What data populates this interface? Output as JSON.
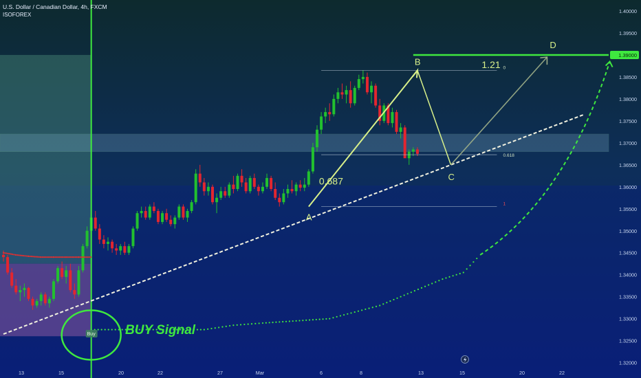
{
  "header": {
    "symbol_line": "U.S. Dollar / Canadian Dollar, 4h, FXCM",
    "author": "ISOFOREX"
  },
  "colors": {
    "bull": "#22c02f",
    "bear": "#e3262f",
    "signal": "#3fe83f",
    "harmonic": "#d8f08a",
    "background_top": "#0d2a2e",
    "background_bottom": "#0a1f73"
  },
  "icons": {
    "replay": "lightning-icon"
  },
  "chart_data": {
    "type": "candlestick",
    "title": "U.S. Dollar / Canadian Dollar, 4h, FXCM",
    "ylim": [
      1.3165,
      1.4025
    ],
    "y_ticks": [
      "1.40000",
      "1.39500",
      "1.38500",
      "1.38000",
      "1.37500",
      "1.37000",
      "1.36500",
      "1.36000",
      "1.35500",
      "1.35000",
      "1.34500",
      "1.34000",
      "1.33500",
      "1.33000",
      "1.32500",
      "1.32000"
    ],
    "x_ticks": [
      "13",
      "15",
      "20",
      "22",
      "27",
      "Mar",
      "6",
      "8",
      "13",
      "15",
      "20",
      "22"
    ],
    "last_price": "1.39000",
    "grid": false,
    "candles_ohlc": [
      [
        1.3445,
        1.3455,
        1.343,
        1.344
      ],
      [
        1.344,
        1.3445,
        1.34,
        1.3405
      ],
      [
        1.3405,
        1.3415,
        1.337,
        1.3375
      ],
      [
        1.3375,
        1.339,
        1.3355,
        1.336
      ],
      [
        1.336,
        1.3375,
        1.334,
        1.3365
      ],
      [
        1.3365,
        1.338,
        1.335,
        1.337
      ],
      [
        1.337,
        1.3372,
        1.334,
        1.3345
      ],
      [
        1.3345,
        1.335,
        1.332,
        1.333
      ],
      [
        1.333,
        1.3345,
        1.3325,
        1.334
      ],
      [
        1.334,
        1.336,
        1.333,
        1.3355
      ],
      [
        1.3355,
        1.336,
        1.333,
        1.3335
      ],
      [
        1.3335,
        1.335,
        1.3325,
        1.3345
      ],
      [
        1.3345,
        1.339,
        1.334,
        1.3385
      ],
      [
        1.3385,
        1.342,
        1.338,
        1.3415
      ],
      [
        1.3415,
        1.343,
        1.339,
        1.3395
      ],
      [
        1.3395,
        1.342,
        1.338,
        1.341
      ],
      [
        1.341,
        1.3425,
        1.336,
        1.3365
      ],
      [
        1.3365,
        1.338,
        1.3345,
        1.3355
      ],
      [
        1.3355,
        1.342,
        1.335,
        1.341
      ],
      [
        1.341,
        1.347,
        1.3405,
        1.3465
      ],
      [
        1.3465,
        1.351,
        1.346,
        1.35
      ],
      [
        1.35,
        1.355,
        1.3495,
        1.353
      ],
      [
        1.353,
        1.3545,
        1.35,
        1.3505
      ],
      [
        1.3505,
        1.3515,
        1.347,
        1.348
      ],
      [
        1.348,
        1.349,
        1.346,
        1.347
      ],
      [
        1.347,
        1.3485,
        1.3455,
        1.3475
      ],
      [
        1.3475,
        1.348,
        1.345,
        1.346
      ],
      [
        1.346,
        1.347,
        1.3445,
        1.3455
      ],
      [
        1.3455,
        1.347,
        1.3445,
        1.3465
      ],
      [
        1.3465,
        1.3475,
        1.3445,
        1.345
      ],
      [
        1.345,
        1.347,
        1.3445,
        1.3465
      ],
      [
        1.3465,
        1.351,
        1.346,
        1.3505
      ],
      [
        1.3505,
        1.3545,
        1.35,
        1.354
      ],
      [
        1.354,
        1.3555,
        1.353,
        1.3545
      ],
      [
        1.3545,
        1.3555,
        1.3525,
        1.353
      ],
      [
        1.353,
        1.356,
        1.3525,
        1.3555
      ],
      [
        1.3555,
        1.3565,
        1.354,
        1.3545
      ],
      [
        1.3545,
        1.355,
        1.3515,
        1.352
      ],
      [
        1.352,
        1.3545,
        1.3515,
        1.354
      ],
      [
        1.354,
        1.355,
        1.352,
        1.3525
      ],
      [
        1.3525,
        1.3535,
        1.351,
        1.3515
      ],
      [
        1.3515,
        1.3535,
        1.3505,
        1.353
      ],
      [
        1.353,
        1.356,
        1.3525,
        1.3555
      ],
      [
        1.3555,
        1.356,
        1.3525,
        1.353
      ],
      [
        1.353,
        1.355,
        1.352,
        1.3545
      ],
      [
        1.3545,
        1.357,
        1.354,
        1.3565
      ],
      [
        1.3565,
        1.364,
        1.356,
        1.363
      ],
      [
        1.363,
        1.365,
        1.36,
        1.361
      ],
      [
        1.361,
        1.362,
        1.358,
        1.359
      ],
      [
        1.359,
        1.361,
        1.358,
        1.36
      ],
      [
        1.36,
        1.3605,
        1.356,
        1.3565
      ],
      [
        1.3565,
        1.3585,
        1.354,
        1.3575
      ],
      [
        1.3575,
        1.36,
        1.357,
        1.359
      ],
      [
        1.359,
        1.36,
        1.3575,
        1.358
      ],
      [
        1.358,
        1.361,
        1.3575,
        1.3605
      ],
      [
        1.3605,
        1.3625,
        1.3585,
        1.3595
      ],
      [
        1.3595,
        1.363,
        1.359,
        1.3625
      ],
      [
        1.3625,
        1.364,
        1.36,
        1.361
      ],
      [
        1.361,
        1.362,
        1.3585,
        1.359
      ],
      [
        1.359,
        1.3625,
        1.3585,
        1.362
      ],
      [
        1.362,
        1.363,
        1.3595,
        1.36
      ],
      [
        1.36,
        1.3605,
        1.358,
        1.359
      ],
      [
        1.359,
        1.361,
        1.3585,
        1.36
      ],
      [
        1.36,
        1.363,
        1.3595,
        1.362
      ],
      [
        1.362,
        1.3625,
        1.359,
        1.3595
      ],
      [
        1.3595,
        1.361,
        1.357,
        1.3575
      ],
      [
        1.3575,
        1.3585,
        1.3555,
        1.3565
      ],
      [
        1.3565,
        1.3595,
        1.356,
        1.3585
      ],
      [
        1.3585,
        1.3605,
        1.3575,
        1.3595
      ],
      [
        1.3595,
        1.3615,
        1.3585,
        1.359
      ],
      [
        1.359,
        1.361,
        1.358,
        1.3605
      ],
      [
        1.3605,
        1.3615,
        1.359,
        1.3598
      ],
      [
        1.3598,
        1.362,
        1.359,
        1.3605
      ],
      [
        1.3605,
        1.364,
        1.36,
        1.3635
      ],
      [
        1.3635,
        1.37,
        1.363,
        1.369
      ],
      [
        1.369,
        1.374,
        1.368,
        1.373
      ],
      [
        1.373,
        1.377,
        1.372,
        1.376
      ],
      [
        1.376,
        1.378,
        1.3745,
        1.377
      ],
      [
        1.377,
        1.379,
        1.375,
        1.3765
      ],
      [
        1.3765,
        1.381,
        1.376,
        1.38
      ],
      [
        1.38,
        1.3825,
        1.379,
        1.3815
      ],
      [
        1.3815,
        1.3835,
        1.38,
        1.381
      ],
      [
        1.381,
        1.383,
        1.379,
        1.382
      ],
      [
        1.382,
        1.384,
        1.378,
        1.379
      ],
      [
        1.379,
        1.383,
        1.3785,
        1.3825
      ],
      [
        1.3825,
        1.3855,
        1.382,
        1.3845
      ],
      [
        1.3845,
        1.3865,
        1.3835,
        1.385
      ],
      [
        1.385,
        1.386,
        1.381,
        1.3815
      ],
      [
        1.3815,
        1.384,
        1.379,
        1.383
      ],
      [
        1.383,
        1.3835,
        1.378,
        1.3785
      ],
      [
        1.3785,
        1.38,
        1.374,
        1.375
      ],
      [
        1.375,
        1.379,
        1.3745,
        1.3785
      ],
      [
        1.3785,
        1.379,
        1.374,
        1.3745
      ],
      [
        1.3745,
        1.378,
        1.3735,
        1.377
      ],
      [
        1.377,
        1.3775,
        1.372,
        1.3725
      ],
      [
        1.3725,
        1.3745,
        1.371,
        1.3735
      ],
      [
        1.3735,
        1.374,
        1.368,
        1.3665
      ],
      [
        1.3665,
        1.3685,
        1.365,
        1.368
      ],
      [
        1.368,
        1.369,
        1.367,
        1.3685
      ],
      [
        1.3685,
        1.369,
        1.367,
        1.3675
      ]
    ],
    "support_zone": [
      1.368,
      1.372
    ],
    "box_left_top": [
      1.3425,
      1.39
    ],
    "box_left_bottom": [
      1.326,
      1.3425
    ],
    "vertical_signal_candle": 21,
    "trendline": {
      "from": [
        0,
        1.3265
      ],
      "to": [
        139,
        1.3765
      ]
    },
    "harmonic_pattern": {
      "points": [
        {
          "label": "A",
          "candle": 73,
          "price": 1.3555
        },
        {
          "label": "B",
          "candle": 99,
          "price": 1.3865
        },
        {
          "label": "C",
          "candle": 107,
          "price": 1.365
        },
        {
          "label": "D",
          "candle": 130,
          "price": 1.3895
        }
      ],
      "ratio_xb": "0.687",
      "ratio_bd": "1.21",
      "fib_levels": [
        {
          "label": "0",
          "price": 1.3865
        },
        {
          "label": "0.618",
          "price": 1.3673
        },
        {
          "label": "1",
          "price": 1.3555
        }
      ]
    },
    "target_level": {
      "price": 1.39,
      "from_candle": 98
    },
    "trailing_stop_red": [
      [
        0,
        1.345
      ],
      [
        3,
        1.3445
      ],
      [
        6,
        1.3442
      ],
      [
        9,
        1.344
      ],
      [
        12,
        1.344
      ],
      [
        15,
        1.344
      ],
      [
        18,
        1.344
      ],
      [
        21,
        1.344
      ]
    ],
    "trailing_stop_green": [
      [
        21,
        1.3275
      ],
      [
        35,
        1.3275
      ],
      [
        48,
        1.3275
      ],
      [
        55,
        1.3285
      ],
      [
        62,
        1.329
      ],
      [
        70,
        1.3295
      ],
      [
        78,
        1.33
      ],
      [
        84,
        1.3315
      ],
      [
        90,
        1.333
      ],
      [
        95,
        1.335
      ],
      [
        100,
        1.337
      ],
      [
        105,
        1.339
      ],
      [
        110,
        1.3405
      ],
      [
        114,
        1.3445
      ]
    ],
    "projection_curve": [
      [
        114,
        1.3445
      ],
      [
        128,
        1.356
      ],
      [
        138,
        1.372
      ],
      [
        145,
        1.3885
      ]
    ],
    "annotations": {
      "buy_label": "Buy",
      "buy_signal_text": "BUY Signal",
      "buy_circle_candle": 21,
      "buy_circle_price": 1.328,
      "pattern_labels": [
        "A",
        "B",
        "C",
        "D"
      ]
    }
  }
}
